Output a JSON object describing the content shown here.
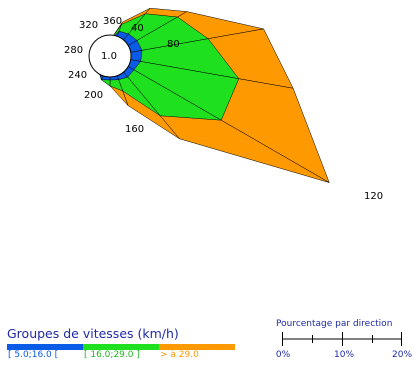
{
  "chart_data": {
    "type": "wind-rose",
    "center_label": "1.0",
    "direction_labels": [
      {
        "deg": 320,
        "text": "320"
      },
      {
        "deg": 0,
        "text": "360"
      },
      {
        "deg": 40,
        "text": "40"
      },
      {
        "deg": 80,
        "text": "80"
      },
      {
        "deg": 120,
        "text": "120"
      },
      {
        "deg": 160,
        "text": "160"
      },
      {
        "deg": 200,
        "text": "200"
      },
      {
        "deg": 240,
        "text": "240"
      },
      {
        "deg": 280,
        "text": "280"
      }
    ],
    "directions": [
      0,
      20,
      40,
      60,
      80,
      100,
      120,
      140,
      160,
      180,
      200,
      220,
      240,
      260,
      280,
      300,
      320,
      340
    ],
    "series": [
      {
        "name": "[ 5.0;16.0 [",
        "color": "#0a5be6",
        "cumulative_percent": [
          1.3,
          2.2,
          2.4,
          2.6,
          2.7,
          2.6,
          2.3,
          2.3,
          2.1,
          2.0,
          2.1,
          1.5,
          1.2,
          1.0,
          1.0,
          1.0,
          1.0,
          1.1
        ]
      },
      {
        "name": "[ 16.0;29.0 ]",
        "color": "#1fe01f",
        "cumulative_percent": [
          1.3,
          2.8,
          4.6,
          6.5,
          8.3,
          10.9,
          10.7,
          6.5,
          3.1,
          2.5,
          2.1,
          1.5,
          1.2,
          1.0,
          1.0,
          1.0,
          1.0,
          1.3
        ]
      },
      {
        "name": "> à 29.0",
        "color": "#ff9900",
        "cumulative_percent": [
          1.3,
          3.0,
          5.2,
          7.4,
          13.0,
          15.5,
          21.1,
          9.0,
          4.4,
          2.5,
          2.1,
          1.5,
          1.2,
          1.0,
          1.0,
          1.0,
          1.0,
          1.3
        ]
      }
    ]
  },
  "legend": {
    "title": "Groupes de vitesses (km/h)",
    "items": [
      {
        "label": "[ 5.0;16.0 [",
        "color": "#0a5be6",
        "text_color": "#0a5be6"
      },
      {
        "label": "[ 16.0;29.0 ]",
        "color": "#1fe01f",
        "text_color": "#1fb81f"
      },
      {
        "label": "> à 29.0",
        "color": "#ff9900",
        "text_color": "#ff9900"
      }
    ]
  },
  "scale": {
    "title": "Pourcentage par direction",
    "ticks": [
      "0%",
      "10%",
      "20%"
    ]
  }
}
